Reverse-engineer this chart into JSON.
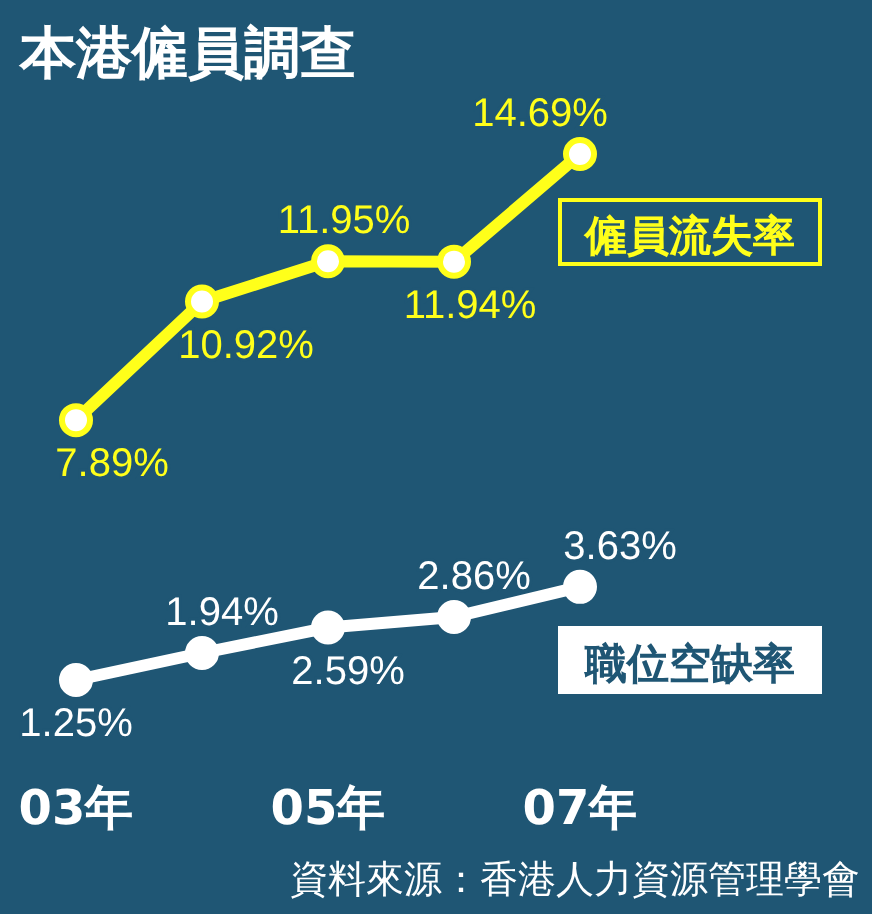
{
  "chart_data": {
    "type": "line",
    "title": "本港僱員調查",
    "categories": [
      "03年",
      null,
      "05年",
      null,
      "07年"
    ],
    "series": [
      {
        "name": "僱員流失率",
        "color": "#ffff1a",
        "values": [
          7.89,
          10.92,
          11.95,
          11.94,
          14.69
        ],
        "value_labels": [
          "7.89%",
          "10.92%",
          "11.95%",
          "11.94%",
          "14.69%"
        ]
      },
      {
        "name": "職位空缺率",
        "color": "#ffffff",
        "values": [
          1.25,
          1.94,
          2.59,
          2.86,
          3.63
        ],
        "value_labels": [
          "1.25%",
          "1.94%",
          "2.59%",
          "2.86%",
          "3.63%"
        ]
      }
    ],
    "marker": "circle",
    "line_style": "solid",
    "annotations": [
      "資料來源：香港人力資源管理學會"
    ]
  }
}
